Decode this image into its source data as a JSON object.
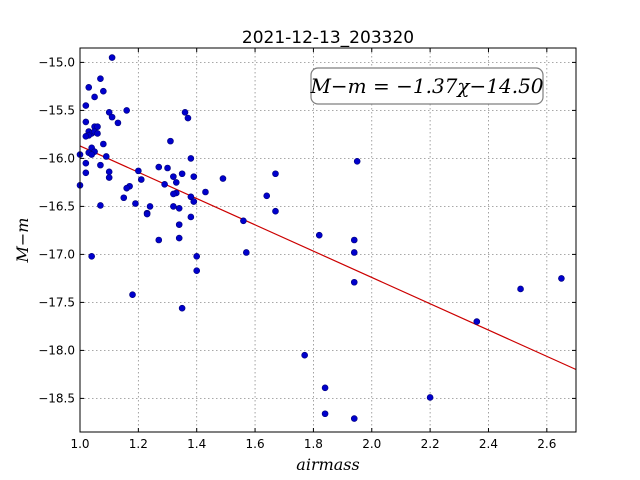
{
  "chart_data": {
    "type": "scatter",
    "title": "2021-12-13_203320",
    "xlabel": "airmass",
    "ylabel": "M−m",
    "xlim": [
      1.0,
      2.7
    ],
    "ylim": [
      -18.85,
      -14.85
    ],
    "xticks": [
      1.0,
      1.2,
      1.4,
      1.6,
      1.8,
      2.0,
      2.2,
      2.4,
      2.6
    ],
    "xtick_labels": [
      "1.0",
      "1.2",
      "1.4",
      "1.6",
      "1.8",
      "2.0",
      "2.2",
      "2.4",
      "2.6"
    ],
    "yticks": [
      -15.0,
      -15.5,
      -16.0,
      -16.5,
      -17.0,
      -17.5,
      -18.0,
      -18.5
    ],
    "ytick_labels": [
      "−15.0",
      "−15.5",
      "−16.0",
      "−16.5",
      "−17.0",
      "−17.5",
      "−18.0",
      "−18.5"
    ],
    "grid": true,
    "annotation": "M−m = −1.37χ−14.50",
    "fit": {
      "slope": -1.37,
      "intercept": -14.5,
      "x_range": [
        1.0,
        2.7
      ]
    },
    "colors": {
      "points": "#0000cc",
      "fit_line": "#cc0000"
    },
    "points": [
      [
        1.11,
        -14.95
      ],
      [
        1.07,
        -15.17
      ],
      [
        1.03,
        -15.26
      ],
      [
        1.08,
        -15.3
      ],
      [
        1.05,
        -15.36
      ],
      [
        1.02,
        -15.45
      ],
      [
        1.1,
        -15.52
      ],
      [
        1.16,
        -15.5
      ],
      [
        1.36,
        -15.52
      ],
      [
        1.11,
        -15.57
      ],
      [
        1.02,
        -15.62
      ],
      [
        1.13,
        -15.63
      ],
      [
        1.37,
        -15.58
      ],
      [
        1.05,
        -15.67
      ],
      [
        1.06,
        -15.67
      ],
      [
        1.03,
        -15.72
      ],
      [
        1.04,
        -15.74
      ],
      [
        1.05,
        -15.72
      ],
      [
        1.06,
        -15.74
      ],
      [
        1.03,
        -15.76
      ],
      [
        1.02,
        -15.77
      ],
      [
        1.31,
        -15.82
      ],
      [
        1.08,
        -15.85
      ],
      [
        1.04,
        -15.89
      ],
      [
        1.05,
        -15.93
      ],
      [
        1.03,
        -15.94
      ],
      [
        1.04,
        -15.96
      ],
      [
        1.0,
        -15.96
      ],
      [
        1.09,
        -15.98
      ],
      [
        1.38,
        -16.0
      ],
      [
        1.95,
        -16.03
      ],
      [
        1.02,
        -16.05
      ],
      [
        1.07,
        -16.07
      ],
      [
        1.27,
        -16.09
      ],
      [
        1.3,
        -16.1
      ],
      [
        1.2,
        -16.13
      ],
      [
        1.1,
        -16.14
      ],
      [
        1.02,
        -16.15
      ],
      [
        1.35,
        -16.16
      ],
      [
        1.32,
        -16.19
      ],
      [
        1.39,
        -16.19
      ],
      [
        1.67,
        -16.16
      ],
      [
        1.49,
        -16.21
      ],
      [
        1.1,
        -16.2
      ],
      [
        1.21,
        -16.22
      ],
      [
        1.33,
        -16.25
      ],
      [
        1.29,
        -16.27
      ],
      [
        1.17,
        -16.29
      ],
      [
        1.16,
        -16.31
      ],
      [
        1.0,
        -16.28
      ],
      [
        1.43,
        -16.35
      ],
      [
        1.33,
        -16.36
      ],
      [
        1.32,
        -16.37
      ],
      [
        1.38,
        -16.4
      ],
      [
        1.64,
        -16.39
      ],
      [
        1.15,
        -16.41
      ],
      [
        1.39,
        -16.45
      ],
      [
        1.19,
        -16.47
      ],
      [
        1.07,
        -16.49
      ],
      [
        1.24,
        -16.5
      ],
      [
        1.32,
        -16.5
      ],
      [
        1.34,
        -16.52
      ],
      [
        1.67,
        -16.55
      ],
      [
        1.23,
        -16.57
      ],
      [
        1.23,
        -16.58
      ],
      [
        1.38,
        -16.61
      ],
      [
        1.56,
        -16.65
      ],
      [
        1.34,
        -16.69
      ],
      [
        1.82,
        -16.8
      ],
      [
        1.34,
        -16.83
      ],
      [
        1.27,
        -16.85
      ],
      [
        1.94,
        -16.85
      ],
      [
        1.57,
        -16.98
      ],
      [
        1.94,
        -16.98
      ],
      [
        1.04,
        -17.02
      ],
      [
        1.4,
        -17.02
      ],
      [
        1.4,
        -17.17
      ],
      [
        2.65,
        -17.25
      ],
      [
        1.94,
        -17.29
      ],
      [
        2.51,
        -17.36
      ],
      [
        1.18,
        -17.42
      ],
      [
        1.35,
        -17.56
      ],
      [
        2.36,
        -17.7
      ],
      [
        1.77,
        -18.05
      ],
      [
        1.84,
        -18.39
      ],
      [
        2.2,
        -18.49
      ],
      [
        1.84,
        -18.66
      ],
      [
        1.94,
        -18.71
      ]
    ]
  }
}
